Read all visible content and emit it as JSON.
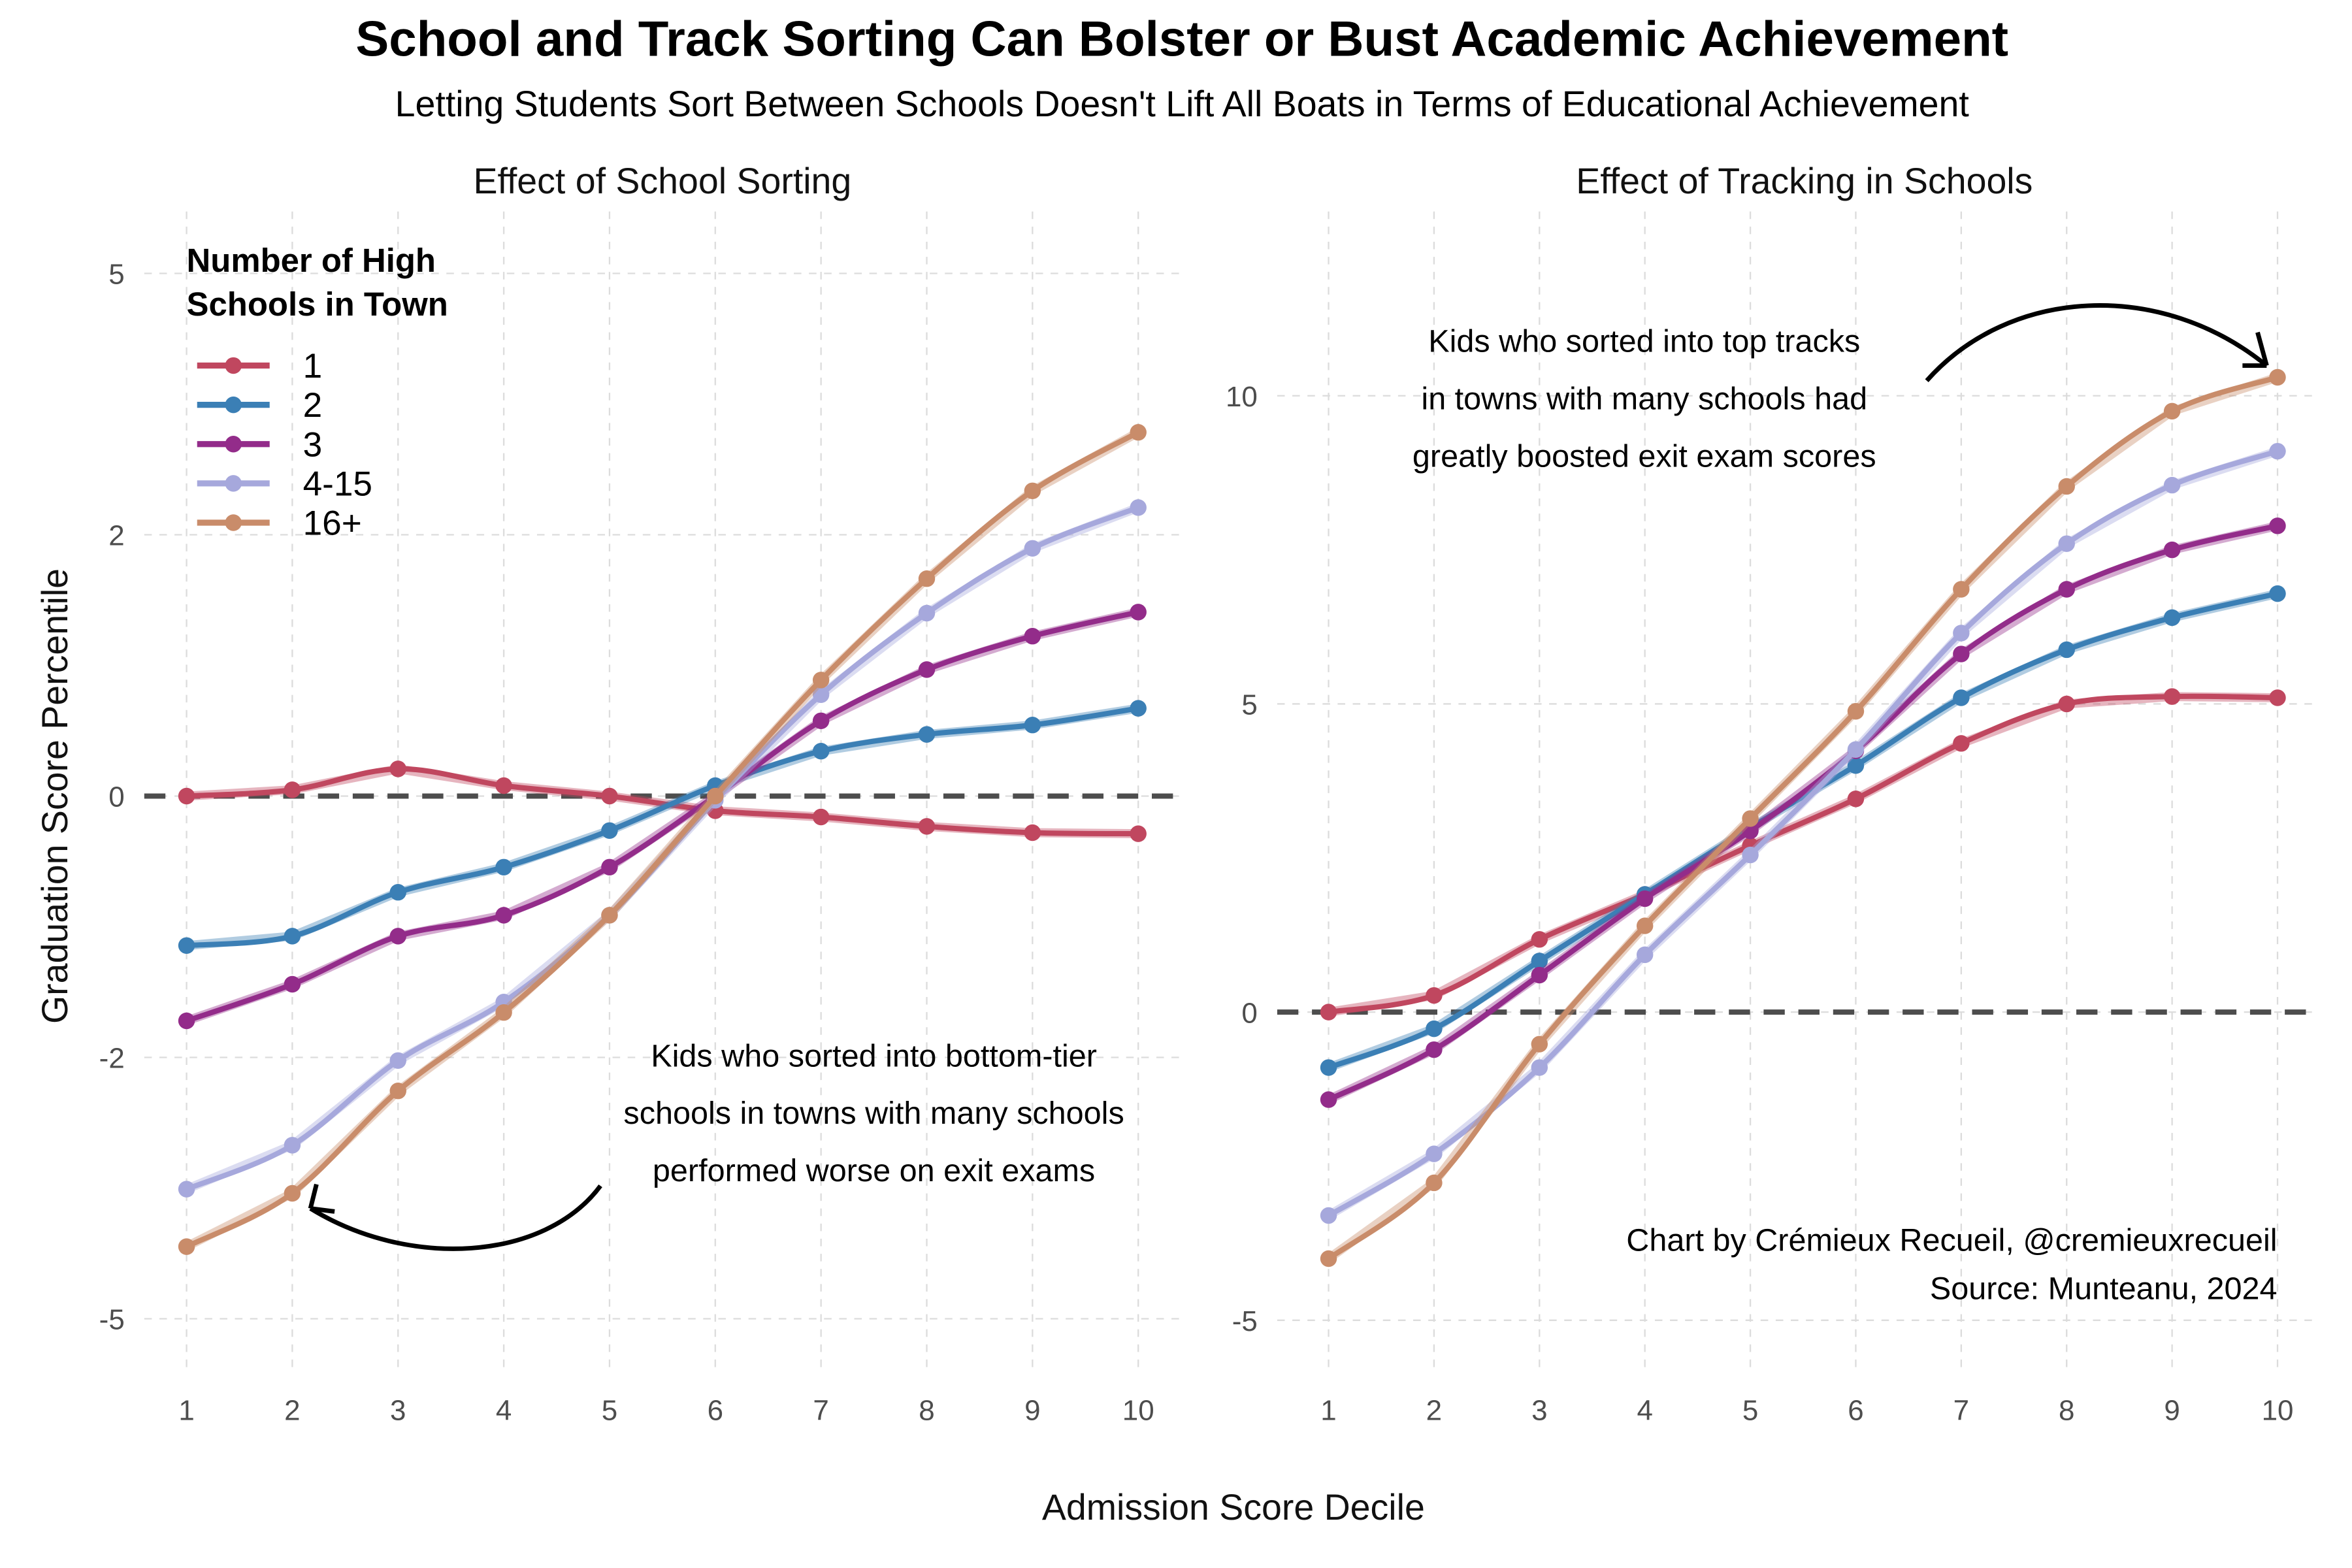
{
  "title": "School and Track Sorting Can Bolster or Bust Academic Achievement",
  "subtitle": "Letting Students Sort Between Schools Doesn't Lift All Boats in Terms of Educational Achievement",
  "credit": [
    "Chart by Crémieux Recueil, @cremieuxrecueil",
    "Source: Munteanu, 2024"
  ],
  "legend_title": [
    "Number of High",
    "Schools in Town"
  ],
  "chart_data": [
    {
      "type": "line",
      "title": "Effect of School Sorting",
      "xlabel": "Admission Score Decile",
      "ylabel": "Graduation Score Percentile",
      "x": [
        1,
        2,
        3,
        4,
        5,
        6,
        7,
        8,
        9,
        10
      ],
      "ylim": [
        -5.5,
        5.5
      ],
      "yticks": [
        {
          "value": 5,
          "label": "5"
        },
        {
          "value": 2.5,
          "label": "2"
        },
        {
          "value": 0,
          "label": "0"
        },
        {
          "value": -2.5,
          "label": "-2"
        },
        {
          "value": -5,
          "label": "-5"
        }
      ],
      "annotation": [
        "Kids who sorted into bottom-tier",
        "schools in towns with many schools",
        "performed worse on exit exams"
      ],
      "series": [
        {
          "name": "1",
          "color": "#c0475f",
          "values": [
            0,
            0.06,
            0.26,
            0.1,
            0,
            -0.14,
            -0.2,
            -0.29,
            -0.35,
            -0.36
          ]
        },
        {
          "name": "2",
          "color": "#3b7fb5",
          "values": [
            -1.43,
            -1.34,
            -0.92,
            -0.68,
            -0.33,
            0.1,
            0.43,
            0.59,
            0.68,
            0.84
          ]
        },
        {
          "name": "3",
          "color": "#932c8a",
          "values": [
            -2.15,
            -1.8,
            -1.34,
            -1.14,
            -0.68,
            0,
            0.72,
            1.21,
            1.53,
            1.76
          ]
        },
        {
          "name": "4-15",
          "color": "#a6a8dc",
          "values": [
            -3.76,
            -3.34,
            -2.53,
            -1.97,
            -1.14,
            -0.04,
            0.97,
            1.75,
            2.37,
            2.76
          ]
        },
        {
          "name": "16+",
          "color": "#c98c6a",
          "values": [
            -4.31,
            -3.8,
            -2.82,
            -2.07,
            -1.14,
            0,
            1.11,
            2.08,
            2.92,
            3.48
          ]
        }
      ]
    },
    {
      "type": "line",
      "title": "Effect of Tracking in Schools",
      "xlabel": "Admission Score Decile",
      "ylabel": "Graduation Score Percentile",
      "x": [
        1,
        2,
        3,
        4,
        5,
        6,
        7,
        8,
        9,
        10
      ],
      "ylim": [
        -6.3,
        13
      ],
      "yticks": [
        {
          "value": 10,
          "label": "10"
        },
        {
          "value": 5,
          "label": "5"
        },
        {
          "value": 0,
          "label": "0"
        },
        {
          "value": -5,
          "label": "-5"
        }
      ],
      "annotation": [
        "Kids who sorted into top tracks",
        "in towns with many schools had",
        "greatly boosted exit exam scores"
      ],
      "series": [
        {
          "name": "1",
          "color": "#c0475f",
          "values": [
            0,
            0.27,
            1.18,
            1.91,
            2.7,
            3.46,
            4.36,
            5.0,
            5.12,
            5.1
          ]
        },
        {
          "name": "2",
          "color": "#3b7fb5",
          "values": [
            -0.9,
            -0.27,
            0.83,
            1.91,
            2.99,
            4.0,
            5.1,
            5.88,
            6.4,
            6.79
          ]
        },
        {
          "name": "3",
          "color": "#932c8a",
          "values": [
            -1.42,
            -0.61,
            0.6,
            1.84,
            2.94,
            4.24,
            5.81,
            6.86,
            7.5,
            7.89
          ]
        },
        {
          "name": "4-15",
          "color": "#a6a8dc",
          "values": [
            -3.3,
            -2.3,
            -0.9,
            0.93,
            2.55,
            4.26,
            6.15,
            7.6,
            8.55,
            9.1
          ]
        },
        {
          "name": "16+",
          "color": "#c98c6a",
          "values": [
            -4.0,
            -2.77,
            -0.52,
            1.4,
            3.14,
            4.88,
            6.86,
            8.53,
            9.75,
            10.3
          ]
        }
      ]
    }
  ]
}
